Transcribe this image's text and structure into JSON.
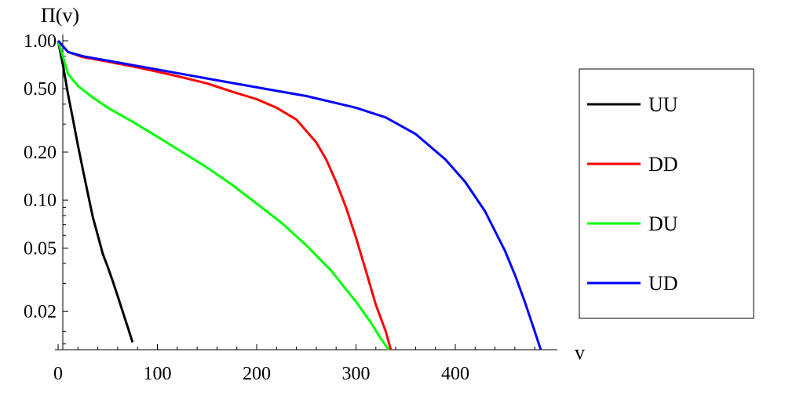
{
  "chart_data": {
    "type": "line",
    "title": "",
    "xlabel": "v",
    "ylabel": "Π(v)",
    "y_scale": "log",
    "xlim": [
      0,
      490
    ],
    "ylim": [
      0.0115,
      1.0
    ],
    "x_ticks": [
      0,
      100,
      200,
      300,
      400
    ],
    "x_tick_labels": [
      "0",
      "100",
      "200",
      "300",
      "400"
    ],
    "y_ticks": [
      1.0,
      0.5,
      0.2,
      0.1,
      0.05,
      0.02
    ],
    "y_tick_labels": [
      "1.00",
      "0.50",
      "0.20",
      "0.10",
      "0.05",
      "0.02"
    ],
    "grid": false,
    "legend_position": "right",
    "series": [
      {
        "name": "UU",
        "color": "#000000",
        "x": [
          0,
          5,
          10,
          15,
          20,
          25,
          30,
          35,
          40,
          45,
          50,
          55,
          60,
          65,
          70,
          75
        ],
        "y": [
          1.0,
          0.7,
          0.46,
          0.32,
          0.22,
          0.155,
          0.11,
          0.078,
          0.06,
          0.046,
          0.038,
          0.031,
          0.025,
          0.02,
          0.016,
          0.0128
        ]
      },
      {
        "name": "DD",
        "color": "#ff0000",
        "x": [
          0,
          10,
          25,
          50,
          75,
          100,
          125,
          150,
          175,
          200,
          220,
          240,
          260,
          270,
          280,
          290,
          300,
          310,
          320,
          330,
          335
        ],
        "y": [
          1.0,
          0.85,
          0.79,
          0.74,
          0.69,
          0.64,
          0.59,
          0.54,
          0.48,
          0.43,
          0.38,
          0.32,
          0.23,
          0.18,
          0.13,
          0.09,
          0.058,
          0.036,
          0.022,
          0.015,
          0.0115
        ]
      },
      {
        "name": "DU",
        "color": "#00ff00",
        "x": [
          0,
          10,
          20,
          35,
          50,
          75,
          100,
          125,
          150,
          175,
          200,
          225,
          250,
          275,
          300,
          315,
          325,
          333
        ],
        "y": [
          1.0,
          0.62,
          0.52,
          0.44,
          0.38,
          0.31,
          0.25,
          0.2,
          0.16,
          0.125,
          0.095,
          0.072,
          0.052,
          0.036,
          0.023,
          0.017,
          0.0135,
          0.0115
        ]
      },
      {
        "name": "UD",
        "color": "#0000ff",
        "x": [
          0,
          10,
          25,
          50,
          100,
          150,
          200,
          250,
          300,
          330,
          360,
          390,
          410,
          430,
          450,
          460,
          470,
          480,
          486
        ],
        "y": [
          1.0,
          0.85,
          0.8,
          0.75,
          0.66,
          0.58,
          0.51,
          0.45,
          0.38,
          0.33,
          0.26,
          0.18,
          0.13,
          0.085,
          0.048,
          0.034,
          0.023,
          0.015,
          0.0115
        ]
      }
    ]
  }
}
